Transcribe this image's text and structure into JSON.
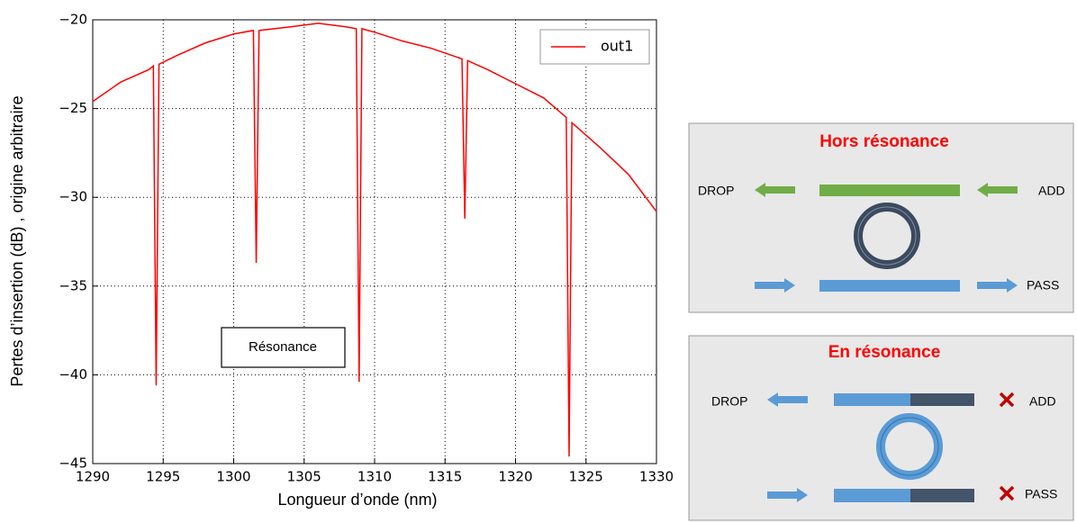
{
  "chart_data": {
    "type": "line",
    "x": [
      1290,
      1292,
      1294,
      1294.3,
      1294.5,
      1294.7,
      1296,
      1298,
      1300,
      1301.4,
      1301.6,
      1301.8,
      1304,
      1306,
      1308,
      1308.7,
      1308.9,
      1309.1,
      1310,
      1312,
      1314,
      1316.2,
      1316.4,
      1316.6,
      1318,
      1320,
      1322,
      1323.6,
      1323.8,
      1324,
      1326,
      1328,
      1330
    ],
    "series": [
      {
        "name": "out1",
        "color": "#ff0000",
        "values": [
          -24.6,
          -23.5,
          -22.8,
          -22.6,
          -40.6,
          -22.5,
          -22.0,
          -21.3,
          -20.8,
          -20.6,
          -33.7,
          -20.6,
          -20.4,
          -20.2,
          -20.4,
          -20.5,
          -40.4,
          -20.5,
          -20.7,
          -21.2,
          -21.6,
          -22.2,
          -31.2,
          -22.3,
          -22.8,
          -23.6,
          -24.4,
          -25.5,
          -44.6,
          -25.8,
          -27.2,
          -28.7,
          -30.8
        ]
      }
    ],
    "xlim": [
      1290,
      1330
    ],
    "ylim": [
      -45,
      -20
    ],
    "xticks": [
      1290,
      1295,
      1300,
      1305,
      1310,
      1315,
      1320,
      1325,
      1330
    ],
    "yticks": [
      {
        "value": -20,
        "label": "−20"
      },
      {
        "value": -25,
        "label": "−25"
      },
      {
        "value": -30,
        "label": "−30"
      },
      {
        "value": -35,
        "label": "−35"
      },
      {
        "value": -40,
        "label": "−40"
      },
      {
        "value": -45,
        "label": "−45"
      }
    ],
    "grid": true,
    "legend": "upper right",
    "xlabel": "Longueur d’onde (nm)",
    "ylabel": "Pertes d’insertion (dB) , origine arbitraire",
    "annotation": "Résonance"
  },
  "diagrams": [
    {
      "title": "Hors résonance",
      "labels": [
        "DROP",
        "ADD",
        "PASS"
      ]
    },
    {
      "title": "En résonance",
      "labels": [
        "DROP",
        "ADD",
        "PASS"
      ]
    }
  ]
}
